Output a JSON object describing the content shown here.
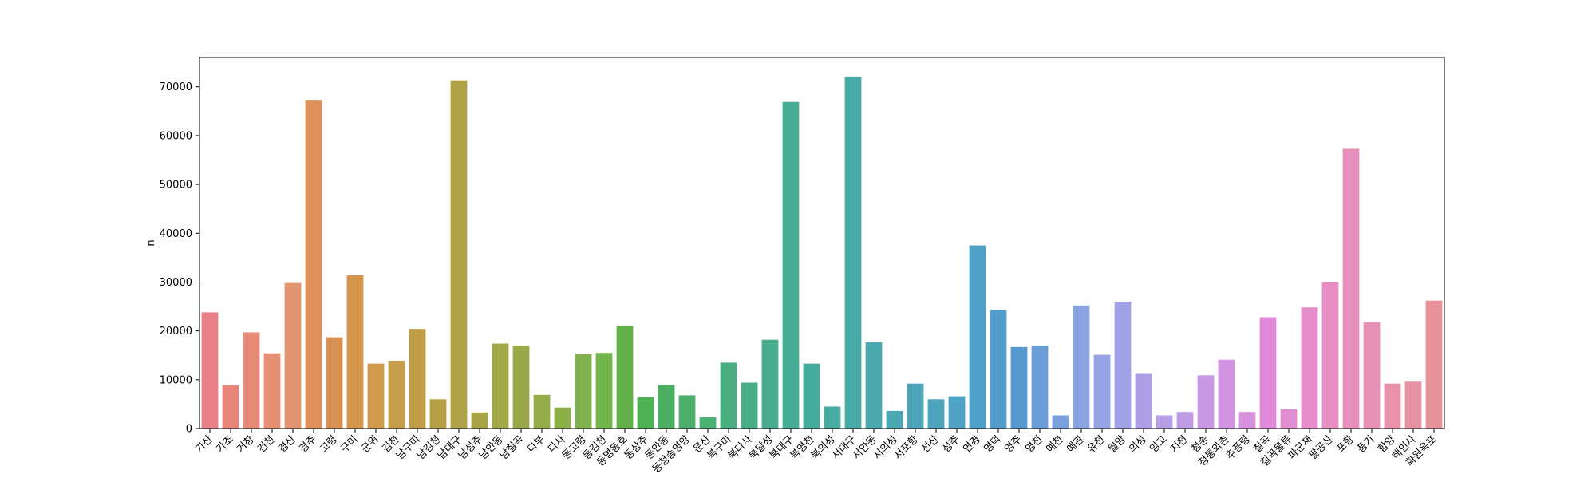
{
  "chart_data": {
    "type": "bar",
    "title": "",
    "xlabel": "",
    "ylabel": "n",
    "ylim": [
      0,
      76000
    ],
    "yticks": [
      0,
      10000,
      20000,
      30000,
      40000,
      50000,
      60000,
      70000
    ],
    "grid": false,
    "categories": [
      "가산",
      "가조",
      "거창",
      "건천",
      "경산",
      "경주",
      "고령",
      "구미",
      "군위",
      "김천",
      "남구미",
      "남김천",
      "남대구",
      "남성주",
      "남안동",
      "남칠곡",
      "다부",
      "다사",
      "동고령",
      "동김천",
      "동명동호",
      "동상주",
      "동안동",
      "동청송영양",
      "문산",
      "북구미",
      "북다사",
      "북달성",
      "북대구",
      "북영천",
      "북의성",
      "서대구",
      "서안동",
      "서의성",
      "서포항",
      "선산",
      "성주",
      "연경",
      "영덕",
      "영주",
      "영천",
      "예천",
      "예관",
      "유천",
      "월암",
      "의성",
      "임고",
      "지천",
      "청송",
      "청통와촌",
      "추풍령",
      "칠곡",
      "칠곡물류",
      "파군재",
      "팔공산",
      "포항",
      "풍기",
      "함양",
      "해인사",
      "화원옥포"
    ],
    "values": [
      23800,
      8900,
      19700,
      15400,
      29800,
      67300,
      18700,
      31400,
      13300,
      13900,
      20400,
      6000,
      71300,
      3300,
      17400,
      17000,
      6900,
      4300,
      15200,
      15500,
      21100,
      6400,
      8900,
      6800,
      2300,
      13500,
      9400,
      18200,
      66900,
      13300,
      4500,
      72100,
      17700,
      3600,
      9200,
      6000,
      6600,
      37500,
      24300,
      16700,
      17000,
      2700,
      25200,
      15100,
      26000,
      11200,
      2700,
      3400,
      10900,
      14100,
      3400,
      22800,
      4000,
      24800,
      30000,
      57300,
      21800,
      9200,
      9600,
      26200
    ],
    "colors": [
      "#e8808a",
      "#e8847a",
      "#e88a78",
      "#e78f73",
      "#e2956e",
      "#dd9059",
      "#d99153",
      "#d4964c",
      "#cf9a4b",
      "#c59c48",
      "#bf9e45",
      "#b6a245",
      "#b0a246",
      "#a8a547",
      "#a2a949",
      "#9aa84a",
      "#95ac48",
      "#8caf48",
      "#80b34e",
      "#74b54b",
      "#5fb148",
      "#4eb254",
      "#4cb062",
      "#4caf6c",
      "#4ab074",
      "#4caf80",
      "#4aae87",
      "#49ae8d",
      "#47ad94",
      "#47ac9b",
      "#47aca2",
      "#49aba8",
      "#4aaaad",
      "#4ba8b3",
      "#4ca6b8",
      "#4da4bd",
      "#4ea2c3",
      "#50a0c8",
      "#539dcd",
      "#579ad2",
      "#6b9ed6",
      "#7aa1db",
      "#8aa3e1",
      "#96a3e5",
      "#a1a2e7",
      "#ac9fe6",
      "#b69ee6",
      "#bf9be6",
      "#c898e5",
      "#d094e3",
      "#d88fdc",
      "#e18ad8",
      "#e28cd1",
      "#e48dca",
      "#e68ec4",
      "#e78fbc",
      "#e690b3",
      "#e891ab",
      "#e792a2",
      "#e89399"
    ]
  }
}
